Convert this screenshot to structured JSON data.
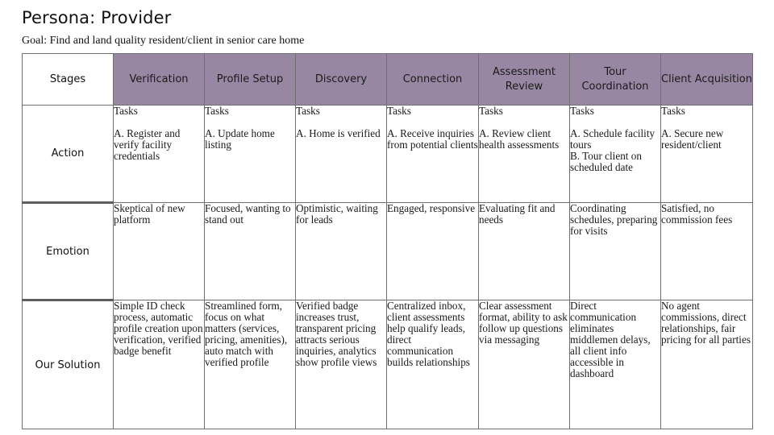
{
  "title": "Persona: Provider",
  "goal": "Goal: Find and land quality resident/client in senior care home",
  "corner_label": "Stages",
  "stages": [
    "Verification",
    "Profile Setup",
    "Discovery",
    "Connection",
    "Assessment Review",
    "Tour Coordination",
    "Client Acquisition"
  ],
  "rows": {
    "action": {
      "label": "Action",
      "task_heading": "Tasks",
      "cells": [
        [
          "A. Register and verify facility credentials"
        ],
        [
          "A. Update home listing"
        ],
        [
          "A. Home is verified"
        ],
        [
          "A. Receive inquiries from potential clients"
        ],
        [
          "A. Review client health assessments"
        ],
        [
          "A. Schedule facility tours",
          "B. Tour client on scheduled date"
        ],
        [
          "A. Secure new resident/client"
        ]
      ]
    },
    "emotion": {
      "label": "Emotion",
      "cells": [
        "Skeptical of new platform",
        "Focused, wanting to stand out",
        "Optimistic, waiting for leads",
        "Engaged, responsive",
        "Evaluating fit and needs",
        "Coordinating schedules, preparing for visits",
        "Satisfied, no commission fees"
      ]
    },
    "solution": {
      "label": "Our Solution",
      "cells": [
        "Simple ID check process, automatic profile creation upon verification, verified badge benefit",
        "Streamlined form, focus on what matters (services, pricing, amenities), auto match with verified profile",
        "Verified badge increases trust, transparent pricing attracts serious inquiries, analytics show profile views",
        "Centralized inbox, client assessments help qualify leads, direct communication builds relationships",
        "Clear assessment format, ability to ask follow up questions via messaging",
        "Direct communication eliminates middlemen delays, all client info accessible in dashboard",
        "No agent commissions, direct relationships, fair pricing for all parties"
      ]
    }
  },
  "colors": {
    "header_fill": "#9887a3",
    "border": "#6f6f6f"
  }
}
